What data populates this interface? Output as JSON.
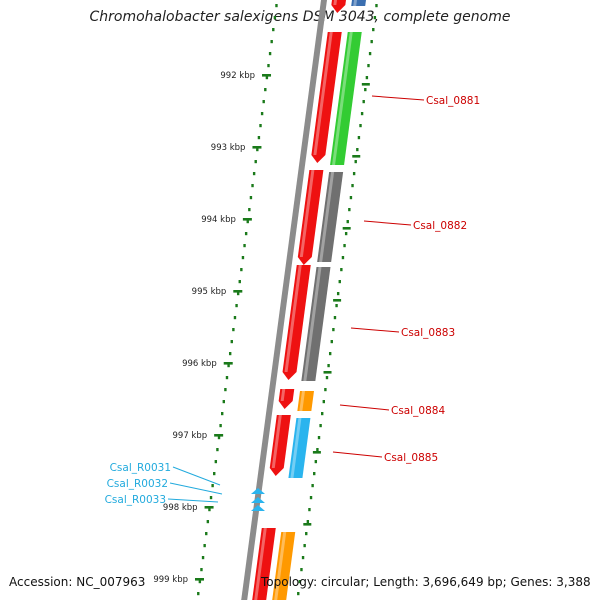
{
  "title": "Chromohalobacter salexigens DSM 3043, complete genome",
  "accession": "Accession: NC_007963",
  "summary": "Topology: circular; Length: 3,696,649 bp; Genes: 3,388",
  "ruler": {
    "ticks": [
      "992 kbp",
      "993 kbp",
      "994 kbp",
      "995 kbp",
      "996 kbp",
      "997 kbp",
      "998 kbp",
      "999 kbp"
    ],
    "color": "#1a7a1a"
  },
  "colors": {
    "backbone": "#8c8c8c",
    "red": "#ee1111",
    "green": "#33cc33",
    "gray": "#707070",
    "orange": "#ff9900",
    "blue": "#2ab4ee",
    "steel": "#3b6fb0",
    "gene_label": "#cc0000",
    "rna_label": "#22aadd"
  },
  "genes": [
    {
      "label": "Csal_0881",
      "category_color": "green"
    },
    {
      "label": "Csal_0882",
      "category_color": "gray"
    },
    {
      "label": "Csal_0883",
      "category_color": "gray"
    },
    {
      "label": "Csal_0884",
      "category_color": "orange"
    },
    {
      "label": "Csal_0885",
      "category_color": "blue"
    }
  ],
  "rnas": [
    {
      "label": "Csal_R0031"
    },
    {
      "label": "Csal_R0032"
    },
    {
      "label": "Csal_R0033"
    }
  ]
}
